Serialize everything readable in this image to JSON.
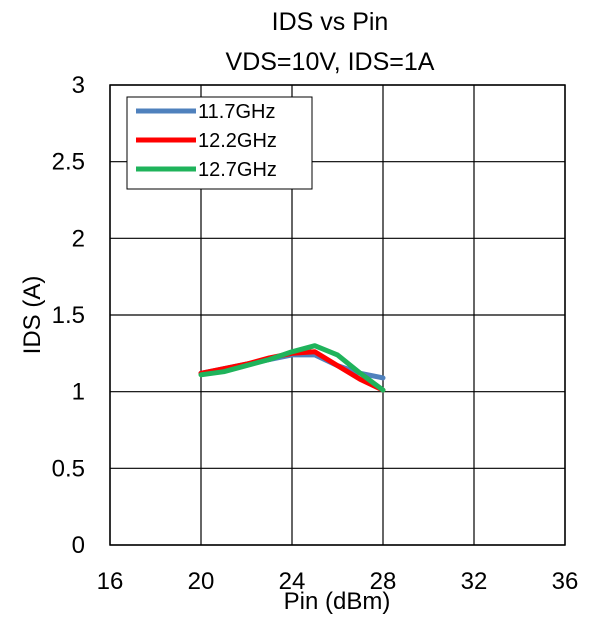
{
  "chart_data": {
    "type": "line",
    "title": "IDS vs Pin",
    "subtitle": "VDS=10V, IDS=1A",
    "xlabel": "Pin (dBm)",
    "ylabel": "IDS (A)",
    "xlim": [
      16,
      36
    ],
    "ylim": [
      0,
      3
    ],
    "xticks": [
      "16",
      "20",
      "24",
      "28",
      "32",
      "36"
    ],
    "yticks": [
      "0",
      "0.5",
      "1",
      "1.5",
      "2",
      "2.5",
      "3"
    ],
    "grid": true,
    "legend_position": "top-left",
    "series": [
      {
        "name": "11.7GHz",
        "color": "#4f81bd",
        "x": [
          20,
          21,
          22,
          23,
          24,
          25,
          26,
          27,
          28
        ],
        "y": [
          1.12,
          1.15,
          1.18,
          1.21,
          1.24,
          1.24,
          1.17,
          1.12,
          1.09
        ]
      },
      {
        "name": "12.2GHz",
        "color": "#ff0000",
        "x": [
          20,
          21,
          22,
          23,
          24,
          25,
          26,
          27,
          28
        ],
        "y": [
          1.12,
          1.15,
          1.18,
          1.22,
          1.25,
          1.26,
          1.17,
          1.08,
          1.01
        ]
      },
      {
        "name": "12.7GHz",
        "color": "#1fb35b",
        "x": [
          20,
          21,
          22,
          23,
          24,
          25,
          26,
          27,
          28
        ],
        "y": [
          1.11,
          1.13,
          1.17,
          1.21,
          1.26,
          1.3,
          1.24,
          1.12,
          1.01
        ]
      }
    ]
  }
}
